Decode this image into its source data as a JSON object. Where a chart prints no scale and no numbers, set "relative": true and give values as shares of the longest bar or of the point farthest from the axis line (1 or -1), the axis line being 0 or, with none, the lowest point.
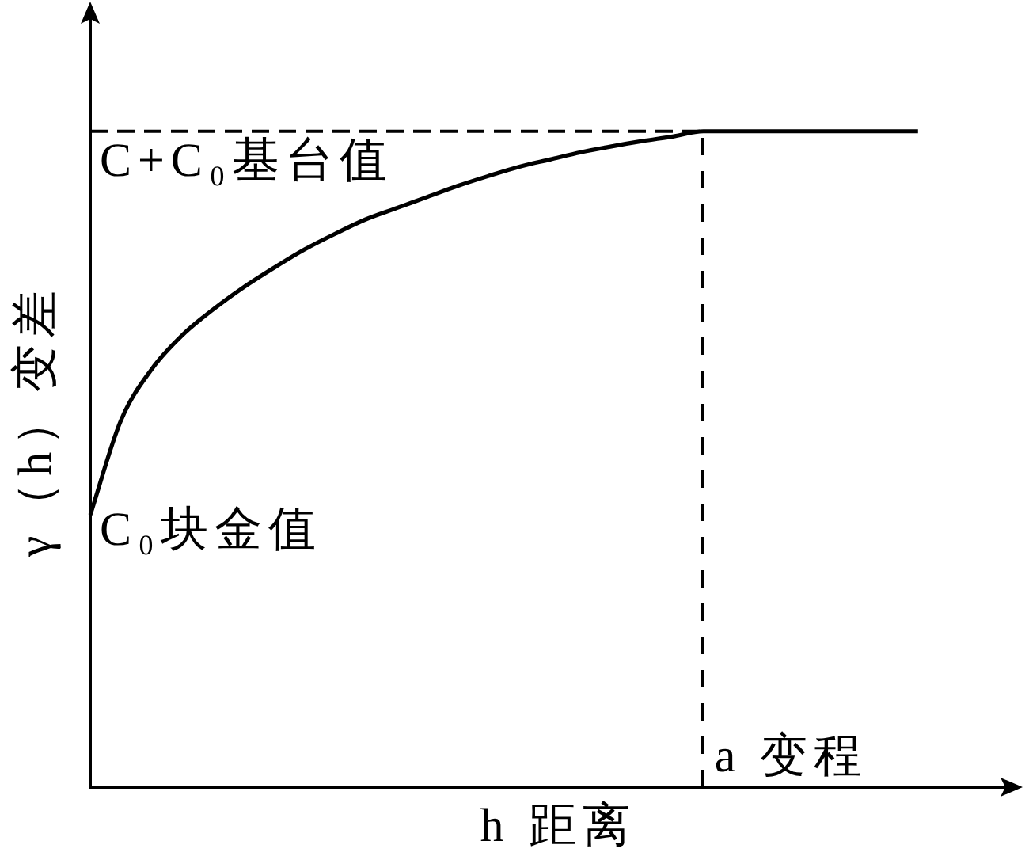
{
  "chart_data": {
    "type": "line",
    "relative": true,
    "xlabel": "h 距离",
    "ylabel": "γ（h）变差",
    "tick_labels": false,
    "categories": [
      null,
      null,
      null,
      null,
      null,
      null,
      null,
      null,
      null,
      null,
      null,
      null,
      null,
      null,
      null,
      null,
      null,
      null,
      null,
      null,
      null,
      null,
      null,
      null,
      null,
      null,
      null,
      null,
      null,
      null,
      null
    ],
    "series": [
      {
        "color": "#000000",
        "values": [
          0.415,
          0.559,
          0.637,
          0.689,
          0.728,
          0.762,
          0.792,
          0.82,
          0.844,
          0.866,
          0.883,
          0.9,
          0.917,
          0.932,
          0.946,
          0.957,
          0.968,
          0.977,
          0.985,
          0.992,
          1,
          1,
          1,
          1,
          1,
          1,
          1,
          1,
          null,
          null,
          null
        ]
      },
      {
        "color": "#000000",
        "line_style": "dashed",
        "values": [
          1,
          1,
          1,
          1,
          1,
          1,
          1,
          1,
          1,
          1,
          1,
          1,
          1,
          1,
          1,
          1,
          1,
          1,
          1,
          1,
          1,
          null,
          null,
          null,
          null,
          null,
          null,
          null,
          null,
          null,
          null
        ]
      }
    ],
    "annotations": [
      "C+C₀基台值",
      "C₀块金值",
      "a 变程"
    ]
  }
}
